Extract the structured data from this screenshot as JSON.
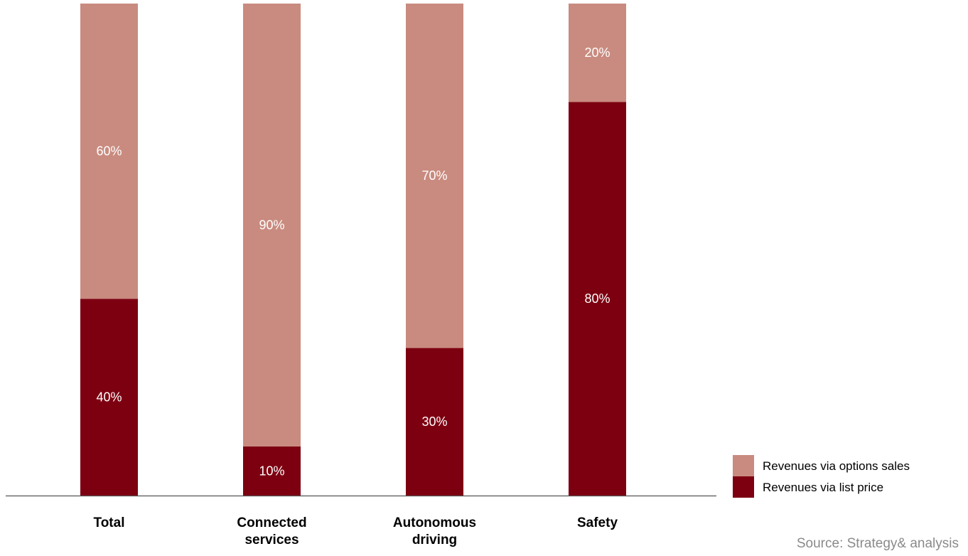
{
  "chart_data": {
    "type": "bar",
    "stacked": true,
    "categories": [
      [
        "Total"
      ],
      [
        "Connected",
        "services"
      ],
      [
        "Autonomous",
        "driving"
      ],
      [
        "Safety"
      ]
    ],
    "series": [
      {
        "name": "Revenues via list price",
        "values": [
          40,
          10,
          30,
          80
        ],
        "labels": [
          "40%",
          "10%",
          "30%",
          "80%"
        ],
        "color": "#7d0011"
      },
      {
        "name": "Revenues via options sales",
        "values": [
          60,
          90,
          70,
          20
        ],
        "labels": [
          "60%",
          "90%",
          "70%",
          "20%"
        ],
        "color": "#c98b7f"
      }
    ],
    "ylim": [
      0,
      100
    ],
    "grid": false,
    "legend_position": "bottom-right",
    "legend_order": [
      "Revenues via options sales",
      "Revenues via list price"
    ]
  },
  "source": "Source: Strategy& analysis"
}
